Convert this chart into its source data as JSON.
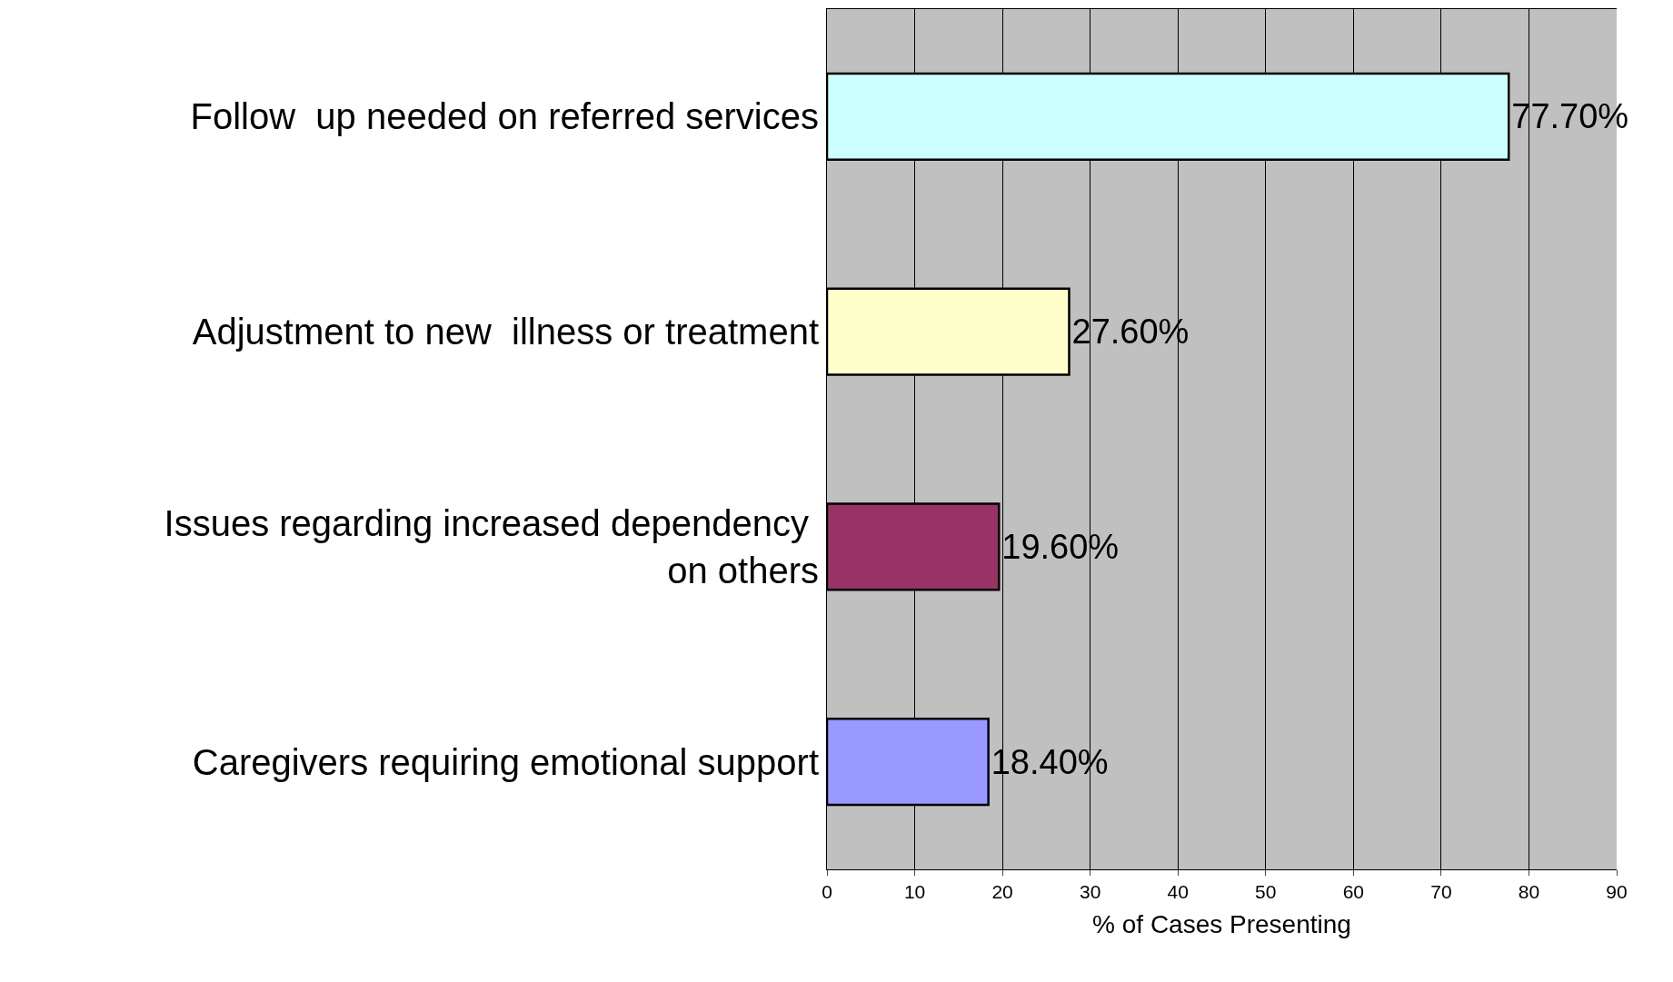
{
  "chart_data": {
    "type": "bar",
    "orientation": "horizontal",
    "categories": [
      "Follow  up needed on referred services",
      "Adjustment to new  illness or treatment",
      "Issues regarding increased dependency on others",
      "Caregivers requiring emotional support"
    ],
    "values": [
      77.7,
      27.6,
      19.6,
      18.4
    ],
    "value_labels": [
      "77.70%",
      "27.60%",
      "19.60%",
      "18.40%"
    ],
    "colors": [
      "#ccffff",
      "#ffffcc",
      "#993366",
      "#9999ff"
    ],
    "xlabel": "% of Cases Presenting",
    "xlim": [
      0,
      90
    ],
    "xticks": [
      0,
      10,
      20,
      30,
      40,
      50,
      60,
      70,
      80,
      90
    ],
    "grid": "x",
    "legend": false
  }
}
